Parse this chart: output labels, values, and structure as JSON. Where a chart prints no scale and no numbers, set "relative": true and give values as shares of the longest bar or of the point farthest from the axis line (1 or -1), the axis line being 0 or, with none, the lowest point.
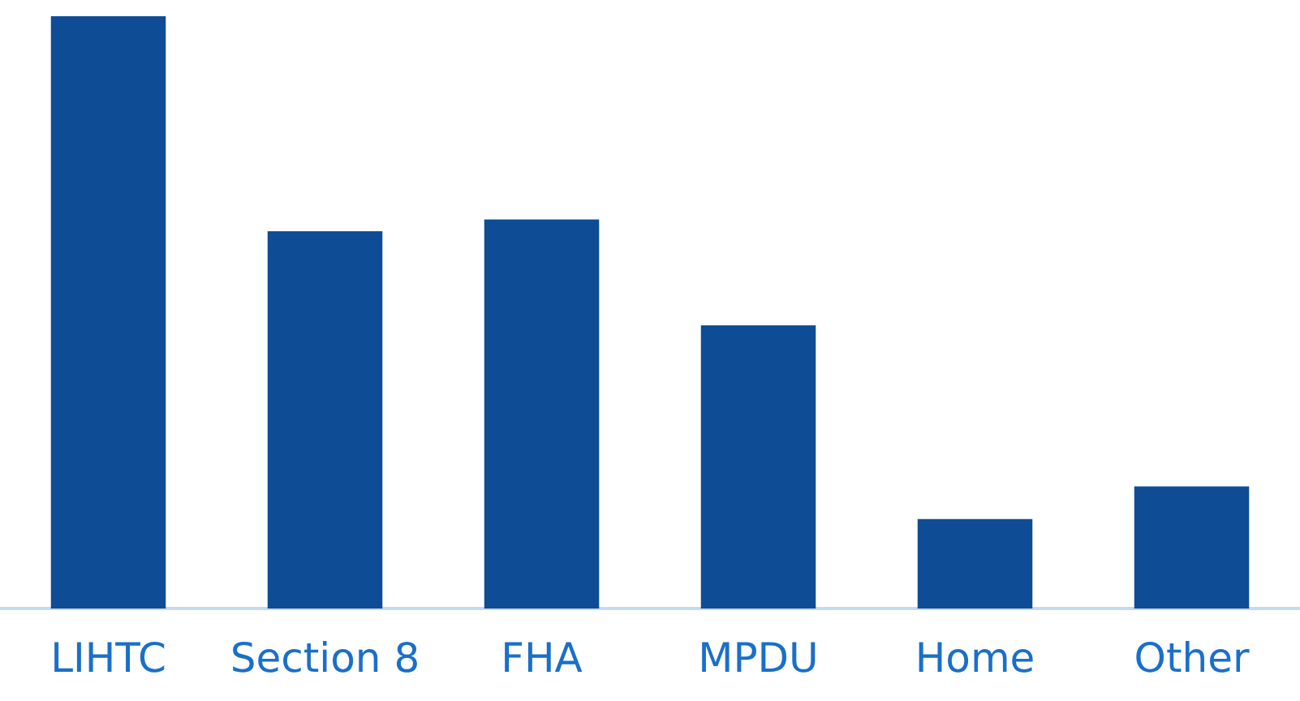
{
  "chart_data": {
    "type": "bar",
    "relative": true,
    "categories": [
      "LIHTC",
      "Section 8",
      "FHA",
      "MPDU",
      "Home",
      "Other"
    ],
    "values": [
      1,
      0.637,
      0.657,
      0.478,
      0.151,
      0.206
    ],
    "color": "#0f4c96"
  }
}
